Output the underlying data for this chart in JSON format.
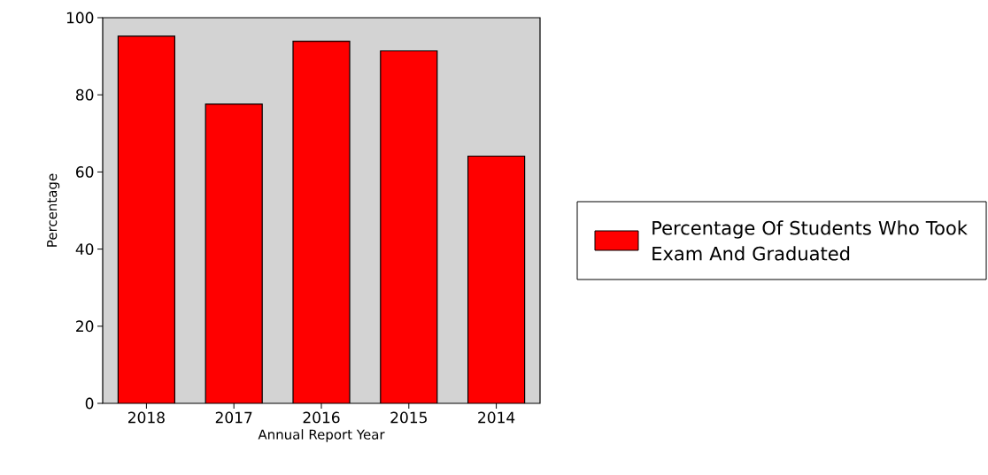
{
  "chart_data": {
    "type": "bar",
    "xlabel": "Annual Report Year",
    "ylabel": "Percentage",
    "categories": [
      "2018",
      "2017",
      "2016",
      "2015",
      "2014"
    ],
    "series": [
      {
        "name": "Percentage Of Students Who Took Exam And Graduated",
        "color": "#ff0000",
        "values": [
          95.2,
          77.6,
          93.9,
          91.4,
          64.1
        ]
      }
    ],
    "ylim": [
      0,
      100
    ],
    "yticks": [
      0,
      20,
      40,
      60,
      80,
      100
    ],
    "legend": "right"
  }
}
